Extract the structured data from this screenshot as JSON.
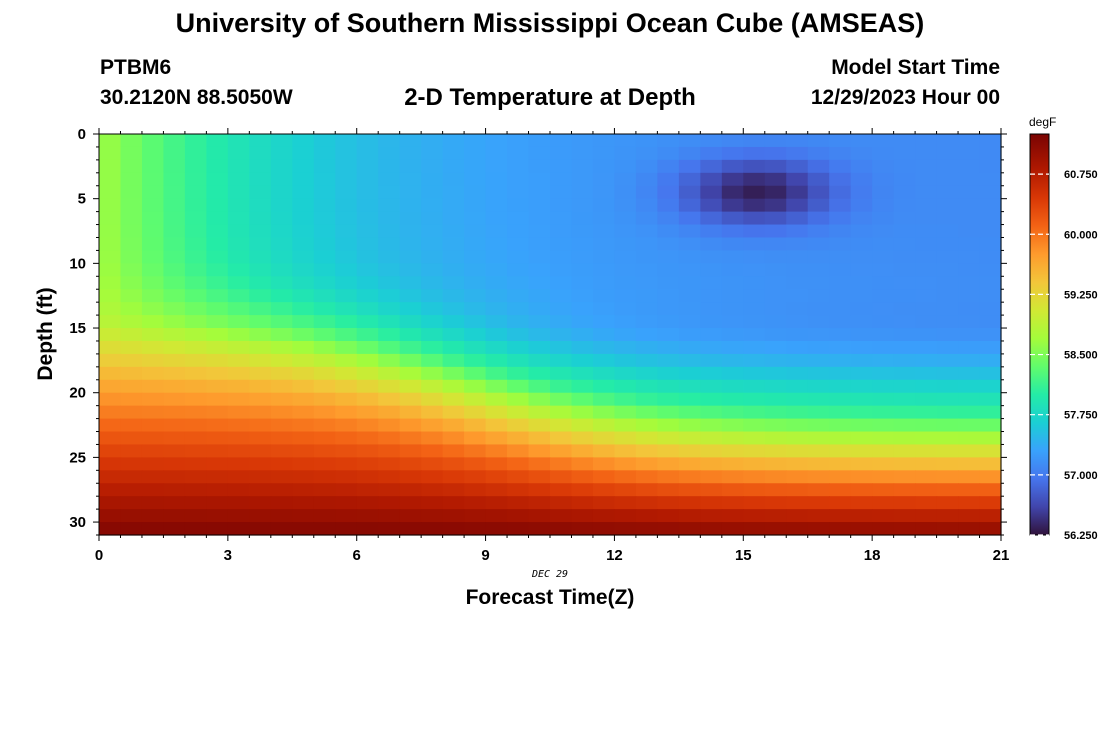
{
  "header": {
    "title": "University of Southern Mississippi Ocean Cube (AMSEAS)",
    "station_id": "PTBM6",
    "station_coords": "30.2120N  88.5050W",
    "plot_title": "2-D Temperature at Depth",
    "model_start_label": "Model Start Time",
    "model_start_date": "12/29/2023 Hour 00"
  },
  "footer": {
    "title": "University of Southern Mississippi Ocean Cube (AMSEAS)"
  },
  "chart_data": {
    "type": "heatmap",
    "title": "2-D Temperature at Depth",
    "xlabel": "Forecast Time(Z)",
    "ylabel": "Depth (ft)",
    "date_label": "DEC 29",
    "xlim": [
      0,
      21
    ],
    "ylim": [
      31,
      0
    ],
    "x_ticks": [
      "0",
      "3",
      "6",
      "9",
      "12",
      "15",
      "18",
      "21"
    ],
    "x_tick_values": [
      0,
      3,
      6,
      9,
      12,
      15,
      18,
      21
    ],
    "y_ticks": [
      "0",
      "5",
      "10",
      "15",
      "20",
      "25",
      "30"
    ],
    "y_tick_values": [
      0,
      5,
      10,
      15,
      20,
      25,
      30
    ],
    "colorbar": {
      "unit": "degF",
      "min": 56.25,
      "max": 61.25,
      "tick_labels": [
        "56.250",
        "57.000",
        "57.750",
        "58.500",
        "59.250",
        "60.000",
        "60.750"
      ],
      "tick_values": [
        56.25,
        57.0,
        57.75,
        58.5,
        59.25,
        60.0,
        60.75
      ]
    },
    "grid_columns": 42,
    "grid_rows": 31,
    "field_model": "Estimated temperature field (degF) read from the colour scale: warm near-surface water (~58.7) at forecast hour 0, cooling to ~57.1 after hour 6; a cold core (~56.3) centred near hour 15.3 at 4.5 ft depth; thermocline deepening from ~14 ft at hour 0 to ~21 ft after hour 12; bottom water ~61.2 at 31 ft."
  }
}
